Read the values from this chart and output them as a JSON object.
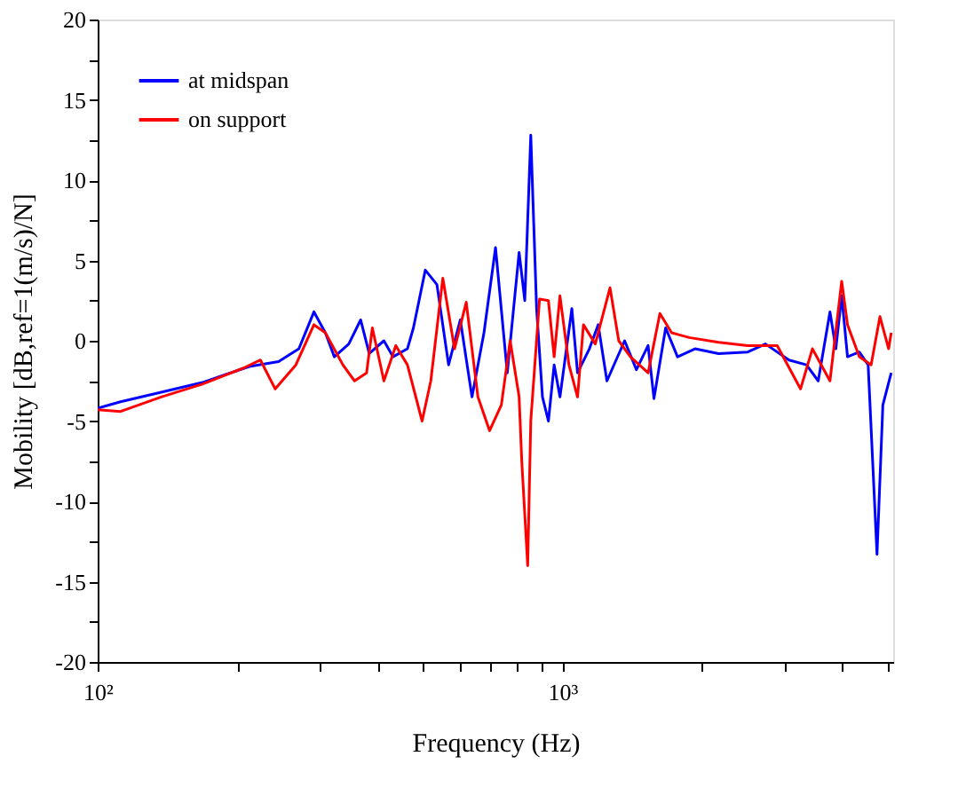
{
  "chart_data": {
    "type": "line",
    "xlabel": "Frequency (Hz)",
    "ylabel": "Mobility [dB,ref=1(m/s)/N]",
    "log": "x",
    "grid": false,
    "legend": "top left",
    "marker": "none",
    "line_style": "solid",
    "xlim": [
      100,
      5150
    ],
    "ylim": [
      -20,
      20
    ],
    "xticks": [
      {
        "value": 100,
        "label": "10²"
      },
      {
        "value": 200,
        "label": null
      },
      {
        "value": 300,
        "label": null
      },
      {
        "value": 400,
        "label": null
      },
      {
        "value": 500,
        "label": null
      },
      {
        "value": 600,
        "label": null
      },
      {
        "value": 700,
        "label": null
      },
      {
        "value": 800,
        "label": null
      },
      {
        "value": 900,
        "label": null
      },
      {
        "value": 1000,
        "label": "10³"
      },
      {
        "value": 2000,
        "label": null
      },
      {
        "value": 3000,
        "label": null
      },
      {
        "value": 4000,
        "label": null
      },
      {
        "value": 5000,
        "label": null
      }
    ],
    "yticks": [
      -20,
      {
        "value": -17.5,
        "label": null
      },
      -15,
      {
        "value": -12.5,
        "label": null
      },
      -10,
      {
        "value": -7.5,
        "label": null
      },
      -5,
      {
        "value": -2.5,
        "label": null
      },
      0,
      {
        "value": 2.5,
        "label": null
      },
      5,
      {
        "value": 7.5,
        "label": null
      },
      10,
      {
        "value": 12.5,
        "label": null
      },
      15,
      {
        "value": 17.5,
        "label": null
      },
      20
    ],
    "series": [
      {
        "name": "at midspan",
        "color": "#0000ff",
        "x": [
          100,
          112,
          137,
          168,
          212,
          245,
          271,
          292,
          309,
          323,
          347,
          368,
          384,
          413,
          432,
          464,
          478,
          507,
          537,
          569,
          603,
          639,
          678,
          718,
          761,
          807,
          830,
          855,
          880,
          906,
          933,
          960,
          988,
          1048,
          1078,
          1143,
          1194,
          1247,
          1361,
          1443,
          1529,
          1574,
          1668,
          1769,
          1929,
          2168,
          2506,
          2735,
          3073,
          3351,
          3552,
          3765,
          3876,
          3990,
          4107,
          4354,
          4549,
          4753,
          4893,
          5100
        ],
        "values": [
          -4.2,
          -3.8,
          -3.2,
          -2.6,
          -1.6,
          -1.3,
          -0.5,
          1.8,
          0.5,
          -1.0,
          -0.2,
          1.3,
          -0.8,
          0.0,
          -1.0,
          -0.5,
          0.8,
          4.4,
          3.5,
          -1.5,
          1.3,
          -3.5,
          0.5,
          5.8,
          -2.0,
          5.5,
          2.5,
          12.8,
          2.0,
          -3.5,
          -5.0,
          -1.5,
          -3.5,
          2.0,
          -2.0,
          -0.5,
          1.0,
          -2.5,
          0.0,
          -1.8,
          -0.3,
          -3.6,
          0.8,
          -1.0,
          -0.5,
          -0.8,
          -0.7,
          -0.2,
          -1.2,
          -1.5,
          -2.5,
          1.8,
          -0.5,
          2.8,
          -1.0,
          -0.7,
          -1.5,
          -13.3,
          -4.0,
          -2.0
        ]
      },
      {
        "name": "on support",
        "color": "#ff0000",
        "x": [
          100,
          112,
          137,
          168,
          206,
          224,
          241,
          267,
          292,
          309,
          337,
          357,
          379,
          390,
          413,
          438,
          464,
          499,
          521,
          553,
          586,
          621,
          658,
          697,
          739,
          772,
          807,
          818,
          842,
          855,
          893,
          933,
          960,
          988,
          1033,
          1078,
          1110,
          1177,
          1266,
          1322,
          1401,
          1529,
          1621,
          1718,
          1874,
          2168,
          2506,
          2899,
          3254,
          3451,
          3765,
          3990,
          4107,
          4354,
          4616,
          4823,
          5035,
          5100
        ],
        "values": [
          -4.3,
          -4.4,
          -3.5,
          -2.7,
          -1.7,
          -1.2,
          -3.0,
          -1.5,
          1.0,
          0.5,
          -1.5,
          -2.5,
          -2.0,
          0.8,
          -2.5,
          -0.3,
          -1.5,
          -5.0,
          -2.5,
          3.9,
          -0.5,
          2.4,
          -3.5,
          -5.6,
          -4.0,
          0.0,
          -3.5,
          -7.6,
          -14.0,
          -5.0,
          2.6,
          2.5,
          -1.0,
          2.8,
          -1.5,
          -3.5,
          1.0,
          -0.2,
          3.3,
          0.0,
          -1.0,
          -2.0,
          1.7,
          0.5,
          0.2,
          -0.1,
          -0.3,
          -0.3,
          -3.0,
          -0.5,
          -2.5,
          3.7,
          1.0,
          -1.0,
          -1.5,
          1.5,
          -0.5,
          0.5
        ]
      }
    ]
  }
}
